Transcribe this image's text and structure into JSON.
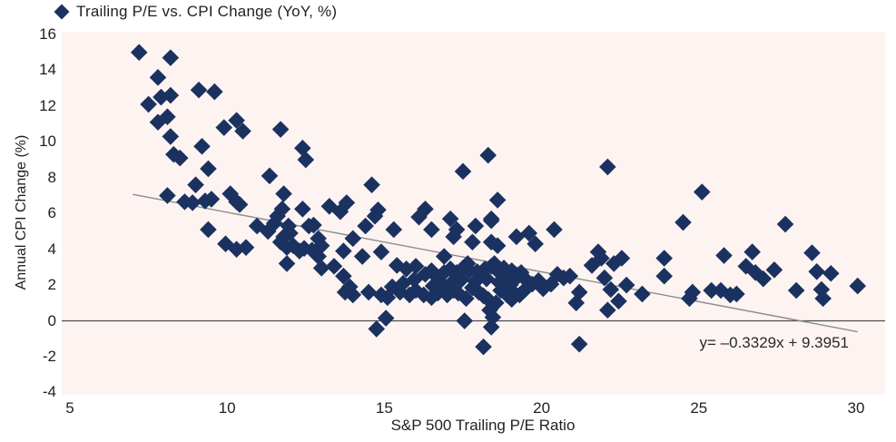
{
  "legend": {
    "label": "Trailing P/E vs. CPI Change (YoY, %)",
    "marker_icon": "diamond-icon"
  },
  "chart_data": {
    "type": "scatter",
    "title": "Trailing P/E vs. CPI Change (YoY, %)",
    "xlabel": "S&P 500 Trailing P/E Ratio",
    "ylabel": "Annual CPI Change (%)",
    "x_ticks": [
      5,
      10,
      15,
      20,
      25,
      30
    ],
    "y_ticks": [
      16,
      14,
      12,
      10,
      8,
      6,
      4,
      2,
      0,
      -2,
      -4
    ],
    "xlim": [
      4.75,
      30.9
    ],
    "ylim": [
      -4.2,
      16.15
    ],
    "grid": false,
    "legend_position": "top-left",
    "zero_line_y": 0,
    "trendline": {
      "label": "y= –0.3329x + 9.3951",
      "slope": -0.3329,
      "intercept": 9.3951,
      "x_range": [
        7.0,
        30.05
      ]
    },
    "colors": {
      "marker": "#1b3261",
      "plot_bg": "#fdf4f2",
      "trend_line": "#8c8c8c",
      "zero_line": "#4d4d4d",
      "text": "#221f1f"
    },
    "series": [
      {
        "name": "Trailing P/E vs. CPI Change (YoY, %)",
        "marker": "diamond",
        "points": [
          [
            7.2,
            15.0
          ],
          [
            8.2,
            14.7
          ],
          [
            7.8,
            13.6
          ],
          [
            9.1,
            12.9
          ],
          [
            9.6,
            12.8
          ],
          [
            7.5,
            12.1
          ],
          [
            7.9,
            12.5
          ],
          [
            8.2,
            12.6
          ],
          [
            7.8,
            11.1
          ],
          [
            8.1,
            11.4
          ],
          [
            8.2,
            10.3
          ],
          [
            9.9,
            10.8
          ],
          [
            10.3,
            11.2
          ],
          [
            10.5,
            10.6
          ],
          [
            11.7,
            10.7
          ],
          [
            9.2,
            9.75
          ],
          [
            8.3,
            9.3
          ],
          [
            8.5,
            9.1
          ],
          [
            12.4,
            9.65
          ],
          [
            12.5,
            9.0
          ],
          [
            9.4,
            8.5
          ],
          [
            11.35,
            8.1
          ],
          [
            18.3,
            9.25
          ],
          [
            17.5,
            8.35
          ],
          [
            22.1,
            8.6
          ],
          [
            9.0,
            7.6
          ],
          [
            8.1,
            7.0
          ],
          [
            8.65,
            6.65
          ],
          [
            8.9,
            6.6
          ],
          [
            9.3,
            6.7
          ],
          [
            9.5,
            6.8
          ],
          [
            10.1,
            7.1
          ],
          [
            10.3,
            6.65
          ],
          [
            10.4,
            6.5
          ],
          [
            11.8,
            7.1
          ],
          [
            11.75,
            6.25
          ],
          [
            12.4,
            6.25
          ],
          [
            13.25,
            6.4
          ],
          [
            13.6,
            6.1
          ],
          [
            13.8,
            6.6
          ],
          [
            14.6,
            7.6
          ],
          [
            14.8,
            6.2
          ],
          [
            16.3,
            6.25
          ],
          [
            18.6,
            6.75
          ],
          [
            25.1,
            7.2
          ],
          [
            24.5,
            5.5
          ],
          [
            27.75,
            5.4
          ],
          [
            22.7,
            2.0
          ],
          [
            9.4,
            5.1
          ],
          [
            9.95,
            4.3
          ],
          [
            10.3,
            4.0
          ],
          [
            10.6,
            4.1
          ],
          [
            10.95,
            5.3
          ],
          [
            11.3,
            5.0
          ],
          [
            11.5,
            5.45
          ],
          [
            11.6,
            5.85
          ],
          [
            11.95,
            5.3
          ],
          [
            11.8,
            4.7
          ],
          [
            12.0,
            4.9
          ],
          [
            11.7,
            4.4
          ],
          [
            11.9,
            4.1
          ],
          [
            12.1,
            4.2
          ],
          [
            12.3,
            3.9
          ],
          [
            12.45,
            4.05
          ],
          [
            12.6,
            5.3
          ],
          [
            12.75,
            5.35
          ],
          [
            12.9,
            4.6
          ],
          [
            13.0,
            4.2
          ],
          [
            12.7,
            3.95
          ],
          [
            12.9,
            3.6
          ],
          [
            11.9,
            3.2
          ],
          [
            13.0,
            2.95
          ],
          [
            13.4,
            3.05
          ],
          [
            13.7,
            3.9
          ],
          [
            13.7,
            2.5
          ],
          [
            13.75,
            1.6
          ],
          [
            14.7,
            5.85
          ],
          [
            16.1,
            5.8
          ],
          [
            17.1,
            5.7
          ],
          [
            18.4,
            5.7
          ],
          [
            14.4,
            5.3
          ],
          [
            15.3,
            5.1
          ],
          [
            16.5,
            5.1
          ],
          [
            17.9,
            5.3
          ],
          [
            17.3,
            5.1
          ],
          [
            17.2,
            4.7
          ],
          [
            19.2,
            4.7
          ],
          [
            19.6,
            4.9
          ],
          [
            20.4,
            5.1
          ],
          [
            19.8,
            4.3
          ],
          [
            14.0,
            4.6
          ],
          [
            14.9,
            3.85
          ],
          [
            14.3,
            3.6
          ],
          [
            17.8,
            4.4
          ],
          [
            18.4,
            4.4
          ],
          [
            18.6,
            4.2
          ],
          [
            18.4,
            5.6
          ],
          [
            16.9,
            3.6
          ],
          [
            15.4,
            3.1
          ],
          [
            15.7,
            2.9
          ],
          [
            16.0,
            3.05
          ],
          [
            16.3,
            2.6
          ],
          [
            16.5,
            2.8
          ],
          [
            16.7,
            2.4
          ],
          [
            16.9,
            2.7
          ],
          [
            17.1,
            2.9
          ],
          [
            17.3,
            2.7
          ],
          [
            17.5,
            2.95
          ],
          [
            17.65,
            3.2
          ],
          [
            17.7,
            2.8
          ],
          [
            17.9,
            2.2
          ],
          [
            18.1,
            2.6
          ],
          [
            18.2,
            2.9
          ],
          [
            18.4,
            3.05
          ],
          [
            18.5,
            3.2
          ],
          [
            18.6,
            2.8
          ],
          [
            18.8,
            2.95
          ],
          [
            18.9,
            2.5
          ],
          [
            19.05,
            2.8
          ],
          [
            19.2,
            2.4
          ],
          [
            19.35,
            2.7
          ],
          [
            19.5,
            2.3
          ],
          [
            19.7,
            2.05
          ],
          [
            19.9,
            2.25
          ],
          [
            20.05,
            1.8
          ],
          [
            20.3,
            2.05
          ],
          [
            20.5,
            2.6
          ],
          [
            20.7,
            2.4
          ],
          [
            20.9,
            2.5
          ],
          [
            13.9,
            1.9
          ],
          [
            21.2,
            1.6
          ],
          [
            21.1,
            1.0
          ],
          [
            21.6,
            3.1
          ],
          [
            21.8,
            3.85
          ],
          [
            21.9,
            3.5
          ],
          [
            22.0,
            2.4
          ],
          [
            22.2,
            1.75
          ],
          [
            22.3,
            3.2
          ],
          [
            22.45,
            1.1
          ],
          [
            22.55,
            3.5
          ],
          [
            22.1,
            0.6
          ],
          [
            14.0,
            1.45
          ],
          [
            14.5,
            1.6
          ],
          [
            14.9,
            1.45
          ],
          [
            15.1,
            1.3
          ],
          [
            15.5,
            1.6
          ],
          [
            15.8,
            1.45
          ],
          [
            16.0,
            1.7
          ],
          [
            16.25,
            1.45
          ],
          [
            16.5,
            1.3
          ],
          [
            16.7,
            1.55
          ],
          [
            17.0,
            1.45
          ],
          [
            17.2,
            1.7
          ],
          [
            17.35,
            1.55
          ],
          [
            17.8,
            1.85
          ],
          [
            18.0,
            1.6
          ],
          [
            18.7,
            1.7
          ],
          [
            18.9,
            1.45
          ],
          [
            19.05,
            1.2
          ],
          [
            19.1,
            1.6
          ],
          [
            18.3,
            1.2
          ],
          [
            18.55,
            1.0
          ],
          [
            18.15,
            1.4
          ],
          [
            17.6,
            1.25
          ],
          [
            19.3,
            1.45
          ],
          [
            19.45,
            1.7
          ],
          [
            15.05,
            0.15
          ],
          [
            14.75,
            -0.45
          ],
          [
            17.55,
            0.0
          ],
          [
            18.35,
            0.6
          ],
          [
            18.45,
            0.2
          ],
          [
            18.4,
            -0.35
          ],
          [
            18.15,
            -1.45
          ],
          [
            21.2,
            -1.3
          ],
          [
            23.2,
            1.5
          ],
          [
            23.9,
            3.5
          ],
          [
            23.9,
            2.5
          ],
          [
            24.8,
            1.6
          ],
          [
            24.7,
            1.25
          ],
          [
            25.4,
            1.7
          ],
          [
            25.7,
            1.7
          ],
          [
            26.0,
            1.45
          ],
          [
            26.2,
            1.5
          ],
          [
            25.8,
            3.65
          ],
          [
            26.7,
            3.85
          ],
          [
            26.5,
            3.05
          ],
          [
            26.8,
            2.7
          ],
          [
            27.05,
            2.35
          ],
          [
            27.4,
            2.85
          ],
          [
            28.1,
            1.7
          ],
          [
            28.6,
            3.8
          ],
          [
            28.75,
            2.75
          ],
          [
            29.2,
            2.65
          ],
          [
            28.9,
            1.75
          ],
          [
            28.95,
            1.25
          ],
          [
            30.05,
            1.95
          ],
          [
            17.45,
            2.3
          ],
          [
            17.15,
            2.15
          ],
          [
            16.85,
            2.05
          ],
          [
            16.55,
            1.95
          ],
          [
            18.25,
            2.35
          ],
          [
            18.65,
            2.15
          ],
          [
            19.0,
            2.0
          ],
          [
            17.95,
            2.75
          ],
          [
            15.95,
            2.3
          ],
          [
            15.6,
            2.1
          ],
          [
            15.25,
            1.9
          ]
        ]
      }
    ]
  }
}
